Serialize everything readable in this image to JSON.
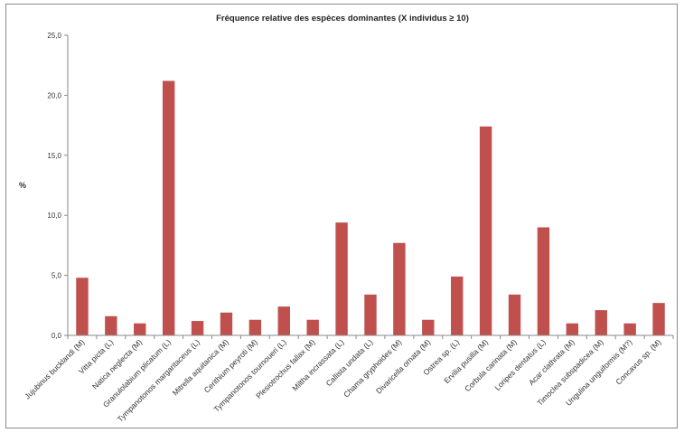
{
  "chart_data": {
    "type": "bar",
    "title": "Fréquence relative des espèces dominantes (X individus ≥ 10)",
    "xlabel": "",
    "ylabel": "%",
    "ylim": [
      0,
      25
    ],
    "yticks": [
      "0,0",
      "5,0",
      "10,0",
      "15,0",
      "20,0",
      "25,0"
    ],
    "grid": false,
    "legend": "none",
    "bar_color": "#c0504d",
    "categories": [
      "Jujubinus bucklandi (M)",
      "Vitta picta (L)",
      "Natica neglecta (M)",
      "Granulolabium plicatum (L)",
      "Tympanotonos margaritaceus (L)",
      "Mitrella aquitanica (M)",
      "Cerithium peyroti (M)",
      "Tympanotonos tournoueri (L)",
      "Plesiotrochus fallax (M)",
      "Miltha incrassata (L)",
      "Callista undata (L)",
      "Chama gryphoides (M)",
      "Divaricella ornata (M)",
      "Ostrea sp. (L)",
      "Ervilia pusilla (M)",
      "Corbula carinata (M)",
      "Loripes dentatus (L)",
      "Acar clathrata (M)",
      "Timoclea subspadicea (M)",
      "Ungulina unguiformis (M?)",
      "Concavus sp. (M)"
    ],
    "values": [
      4.8,
      1.6,
      1.0,
      21.2,
      1.2,
      1.9,
      1.3,
      2.4,
      1.3,
      9.4,
      3.4,
      7.7,
      1.3,
      4.9,
      17.4,
      3.4,
      9.0,
      1.0,
      2.1,
      1.0,
      2.7
    ]
  }
}
